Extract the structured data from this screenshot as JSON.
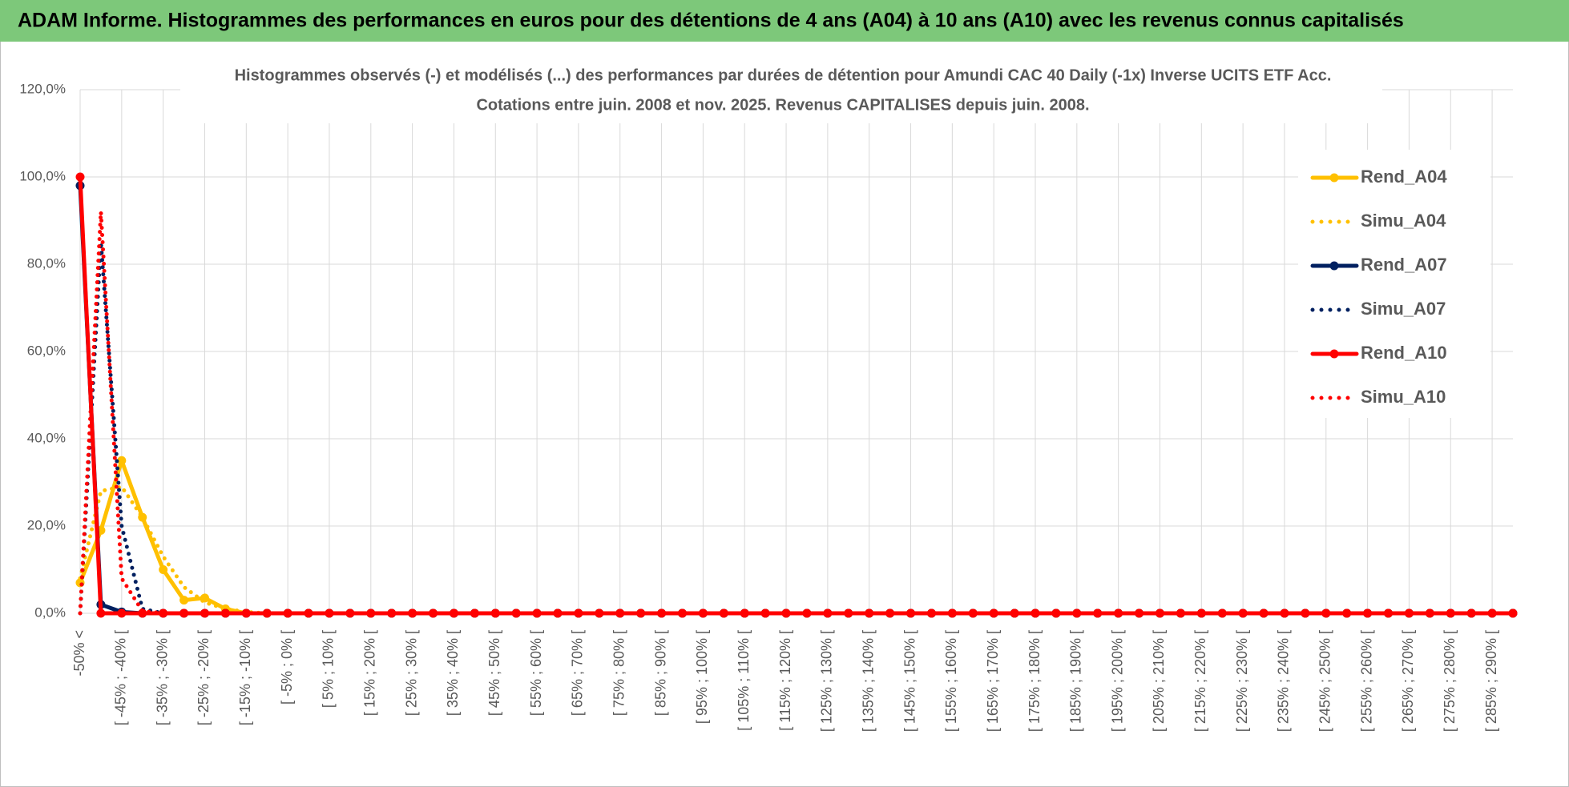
{
  "header": {
    "title": "ADAM Informe. Histogrammes des performances en euros pour des détentions de 4 ans (A04) à 10 ans (A10) avec les revenus connus capitalisés"
  },
  "chart_data": {
    "type": "line",
    "title": "Histogrammes observés (-) et modélisés (...) des performances par durées de détention pour Amundi CAC 40 Daily (-1x) Inverse UCITS ETF Acc.",
    "subtitle": "Cotations entre juin. 2008 et nov. 2025. Revenus CAPITALISES depuis juin. 2008.",
    "categories": [
      "-50% <",
      null,
      "[ -45% ; -40% [",
      null,
      "[ -35% ; -30% [",
      null,
      "[ -25% ; -20% [",
      null,
      "[ -15% ; -10% [",
      null,
      "[ -5% ; 0% [",
      null,
      "[ 5% ; 10% [",
      null,
      "[ 15% ; 20% [",
      null,
      "[ 25% ; 30% [",
      null,
      "[ 35% ; 40% [",
      null,
      "[ 45% ; 50% [",
      null,
      "[ 55% ; 60% [",
      null,
      "[ 65% ; 70% [",
      null,
      "[ 75% ; 80% [",
      null,
      "[ 85% ; 90% [",
      null,
      "[ 95% ; 100% [",
      null,
      "[ 105% ; 110% [",
      null,
      "[ 115% ; 120% [",
      null,
      "[ 125% ; 130% [",
      null,
      "[ 135% ; 140% [",
      null,
      "[ 145% ; 150% [",
      null,
      "[ 155% ; 160% [",
      null,
      "[ 165% ; 170% [",
      null,
      "[ 175% ; 180% [",
      null,
      "[ 185% ; 190% [",
      null,
      "[ 195% ; 200% [",
      null,
      "[ 205% ; 210% [",
      null,
      "[ 215% ; 220% [",
      null,
      "[ 225% ; 230% [",
      null,
      "[ 235% ; 240% [",
      null,
      "[ 245% ; 250% [",
      null,
      "[ 255% ; 260% [",
      null,
      "[ 265% ; 270% [",
      null,
      "[ 275% ; 280% [",
      null,
      "[ 285% ; 290% [",
      null
    ],
    "series": [
      {
        "name": "Rend_A04",
        "color": "#FFC000",
        "line_style": "solid",
        "markers": true,
        "values": [
          7,
          19,
          35,
          22,
          10,
          3,
          3.5,
          1,
          0,
          0,
          0,
          0,
          0,
          0,
          0,
          0,
          0,
          0,
          0,
          0,
          0,
          0,
          0,
          0,
          0,
          0,
          0,
          0,
          0,
          0,
          0,
          0,
          0,
          0,
          0,
          0,
          0,
          0,
          0,
          0,
          0,
          0,
          0,
          0,
          0,
          0,
          0,
          0,
          0,
          0,
          0,
          0,
          0,
          0,
          0,
          0,
          0,
          0,
          0,
          0,
          0,
          0,
          0,
          0,
          0,
          0,
          0,
          0,
          0,
          0
        ]
      },
      {
        "name": "Simu_A04",
        "color": "#FFC000",
        "line_style": "dotted",
        "markers": false,
        "values": [
          8,
          28,
          29,
          22,
          13,
          6,
          2.5,
          1,
          0.3,
          0,
          0,
          0,
          0,
          0,
          0,
          0,
          0,
          0,
          0,
          0,
          0,
          0,
          0,
          0,
          0,
          0,
          0,
          0,
          0,
          0,
          0,
          0,
          0,
          0,
          0,
          0,
          0,
          0,
          0,
          0,
          0,
          0,
          0,
          0,
          0,
          0,
          0,
          0,
          0,
          0,
          0,
          0,
          0,
          0,
          0,
          0,
          0,
          0,
          0,
          0,
          0,
          0,
          0,
          0,
          0,
          0,
          0,
          0,
          0,
          0
        ]
      },
      {
        "name": "Rend_A07",
        "color": "#002060",
        "line_style": "solid",
        "markers": true,
        "values": [
          98,
          2,
          0.3,
          0,
          0,
          0,
          0,
          0,
          0,
          0,
          0,
          0,
          0,
          0,
          0,
          0,
          0,
          0,
          0,
          0,
          0,
          0,
          0,
          0,
          0,
          0,
          0,
          0,
          0,
          0,
          0,
          0,
          0,
          0,
          0,
          0,
          0,
          0,
          0,
          0,
          0,
          0,
          0,
          0,
          0,
          0,
          0,
          0,
          0,
          0,
          0,
          0,
          0,
          0,
          0,
          0,
          0,
          0,
          0,
          0,
          0,
          0,
          0,
          0,
          0,
          0,
          0,
          0,
          0,
          0
        ]
      },
      {
        "name": "Simu_A07",
        "color": "#002060",
        "line_style": "dotted",
        "markers": false,
        "values": [
          0,
          85,
          20,
          1,
          0,
          0,
          0,
          0,
          0,
          0,
          0,
          0,
          0,
          0,
          0,
          0,
          0,
          0,
          0,
          0,
          0,
          0,
          0,
          0,
          0,
          0,
          0,
          0,
          0,
          0,
          0,
          0,
          0,
          0,
          0,
          0,
          0,
          0,
          0,
          0,
          0,
          0,
          0,
          0,
          0,
          0,
          0,
          0,
          0,
          0,
          0,
          0,
          0,
          0,
          0,
          0,
          0,
          0,
          0,
          0,
          0,
          0,
          0,
          0,
          0,
          0,
          0,
          0,
          0,
          0
        ]
      },
      {
        "name": "Rend_A10",
        "color": "#FF0000",
        "line_style": "solid",
        "markers": true,
        "values": [
          100,
          0,
          0,
          0,
          0,
          0,
          0,
          0,
          0,
          0,
          0,
          0,
          0,
          0,
          0,
          0,
          0,
          0,
          0,
          0,
          0,
          0,
          0,
          0,
          0,
          0,
          0,
          0,
          0,
          0,
          0,
          0,
          0,
          0,
          0,
          0,
          0,
          0,
          0,
          0,
          0,
          0,
          0,
          0,
          0,
          0,
          0,
          0,
          0,
          0,
          0,
          0,
          0,
          0,
          0,
          0,
          0,
          0,
          0,
          0,
          0,
          0,
          0,
          0,
          0,
          0,
          0,
          0,
          0,
          0
        ]
      },
      {
        "name": "Simu_A10",
        "color": "#FF0000",
        "line_style": "dotted",
        "markers": false,
        "values": [
          0,
          92,
          8,
          0.5,
          0,
          0,
          0,
          0,
          0,
          0,
          0,
          0,
          0,
          0,
          0,
          0,
          0,
          0,
          0,
          0,
          0,
          0,
          0,
          0,
          0,
          0,
          0,
          0,
          0,
          0,
          0,
          0,
          0,
          0,
          0,
          0,
          0,
          0,
          0,
          0,
          0,
          0,
          0,
          0,
          0,
          0,
          0,
          0,
          0,
          0,
          0,
          0,
          0,
          0,
          0,
          0,
          0,
          0,
          0,
          0,
          0,
          0,
          0,
          0,
          0,
          0,
          0,
          0,
          0,
          0
        ]
      }
    ],
    "ylim": [
      0,
      120
    ],
    "yticks": [
      {
        "value": 0,
        "label": "0,0%"
      },
      {
        "value": 20,
        "label": "20,0%"
      },
      {
        "value": 40,
        "label": "40,0%"
      },
      {
        "value": 60,
        "label": "60,0%"
      },
      {
        "value": 80,
        "label": "80,0%"
      },
      {
        "value": 100,
        "label": "100,0%"
      },
      {
        "value": 120,
        "label": "120,0%"
      }
    ],
    "grid": true,
    "legend": "right"
  }
}
